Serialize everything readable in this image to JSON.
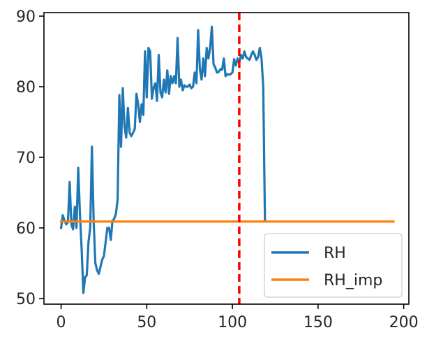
{
  "chart_data": {
    "type": "line",
    "title": "",
    "xlabel": "",
    "ylabel": "",
    "xlim": [
      -10,
      203
    ],
    "ylim": [
      49.2,
      90.5
    ],
    "xticks": [
      0,
      50,
      100,
      150,
      200
    ],
    "yticks": [
      50,
      60,
      70,
      80,
      90
    ],
    "grid": false,
    "legend_position": "lower-right",
    "vline": {
      "x": 104,
      "color": "#ff0000",
      "style": "dashed"
    },
    "series": [
      {
        "name": "RH",
        "color": "#1f77b4",
        "x": [
          0,
          1,
          2,
          3,
          4,
          5,
          6,
          7,
          8,
          9,
          10,
          11,
          12,
          13,
          14,
          15,
          16,
          17,
          18,
          19,
          20,
          21,
          22,
          23,
          24,
          25,
          26,
          27,
          28,
          29,
          30,
          31,
          32,
          33,
          34,
          35,
          36,
          37,
          38,
          39,
          40,
          41,
          42,
          43,
          44,
          45,
          46,
          47,
          48,
          49,
          50,
          51,
          52,
          53,
          54,
          55,
          56,
          57,
          58,
          59,
          60,
          61,
          62,
          63,
          64,
          65,
          66,
          67,
          68,
          69,
          70,
          71,
          72,
          73,
          74,
          75,
          76,
          77,
          78,
          79,
          80,
          81,
          82,
          83,
          84,
          85,
          86,
          87,
          88,
          89,
          90,
          91,
          92,
          93,
          94,
          95,
          96,
          97,
          98,
          99,
          100,
          101,
          102,
          103,
          104,
          105,
          106,
          107,
          108,
          109,
          110,
          111,
          112,
          113,
          114,
          115,
          116,
          117,
          118,
          119
        ],
        "y": [
          60,
          61.8,
          61,
          60.5,
          60.8,
          66.5,
          60.5,
          59.8,
          63,
          60,
          68.5,
          62,
          57,
          50.8,
          53,
          53.3,
          58,
          60,
          71.5,
          61,
          55,
          54,
          53.5,
          54.5,
          55.5,
          56,
          58,
          60,
          60,
          58.3,
          61,
          61.3,
          62,
          64,
          78.8,
          71.5,
          79.8,
          74.5,
          72.8,
          77,
          73.5,
          73,
          73.5,
          74,
          79,
          77.5,
          75,
          77.5,
          76,
          85,
          78.5,
          85.5,
          85,
          78.3,
          79.8,
          80.5,
          78,
          84.5,
          79.2,
          78.5,
          81,
          79.2,
          82.3,
          79,
          81.5,
          80.5,
          81.5,
          80.5,
          86.9,
          80,
          81,
          79.5,
          80.2,
          80,
          80,
          80.3,
          79.8,
          80,
          82,
          80.5,
          88,
          82.5,
          81,
          84,
          81.5,
          85.5,
          84,
          85.5,
          88.5,
          83.2,
          82.7,
          82,
          82.1,
          82.5,
          82.4,
          84,
          81.5,
          81.8,
          81.7,
          81.8,
          82,
          83.9,
          83,
          84,
          83.4,
          84.5,
          84,
          85,
          84.2,
          84,
          83.8,
          84.5,
          85,
          84.5,
          83.8,
          84.2,
          85.5,
          84,
          80,
          61
        ]
      },
      {
        "name": "RH_imp",
        "color": "#ff7f0e",
        "x": [
          0,
          194
        ],
        "y": [
          60.9,
          60.9
        ]
      }
    ]
  }
}
